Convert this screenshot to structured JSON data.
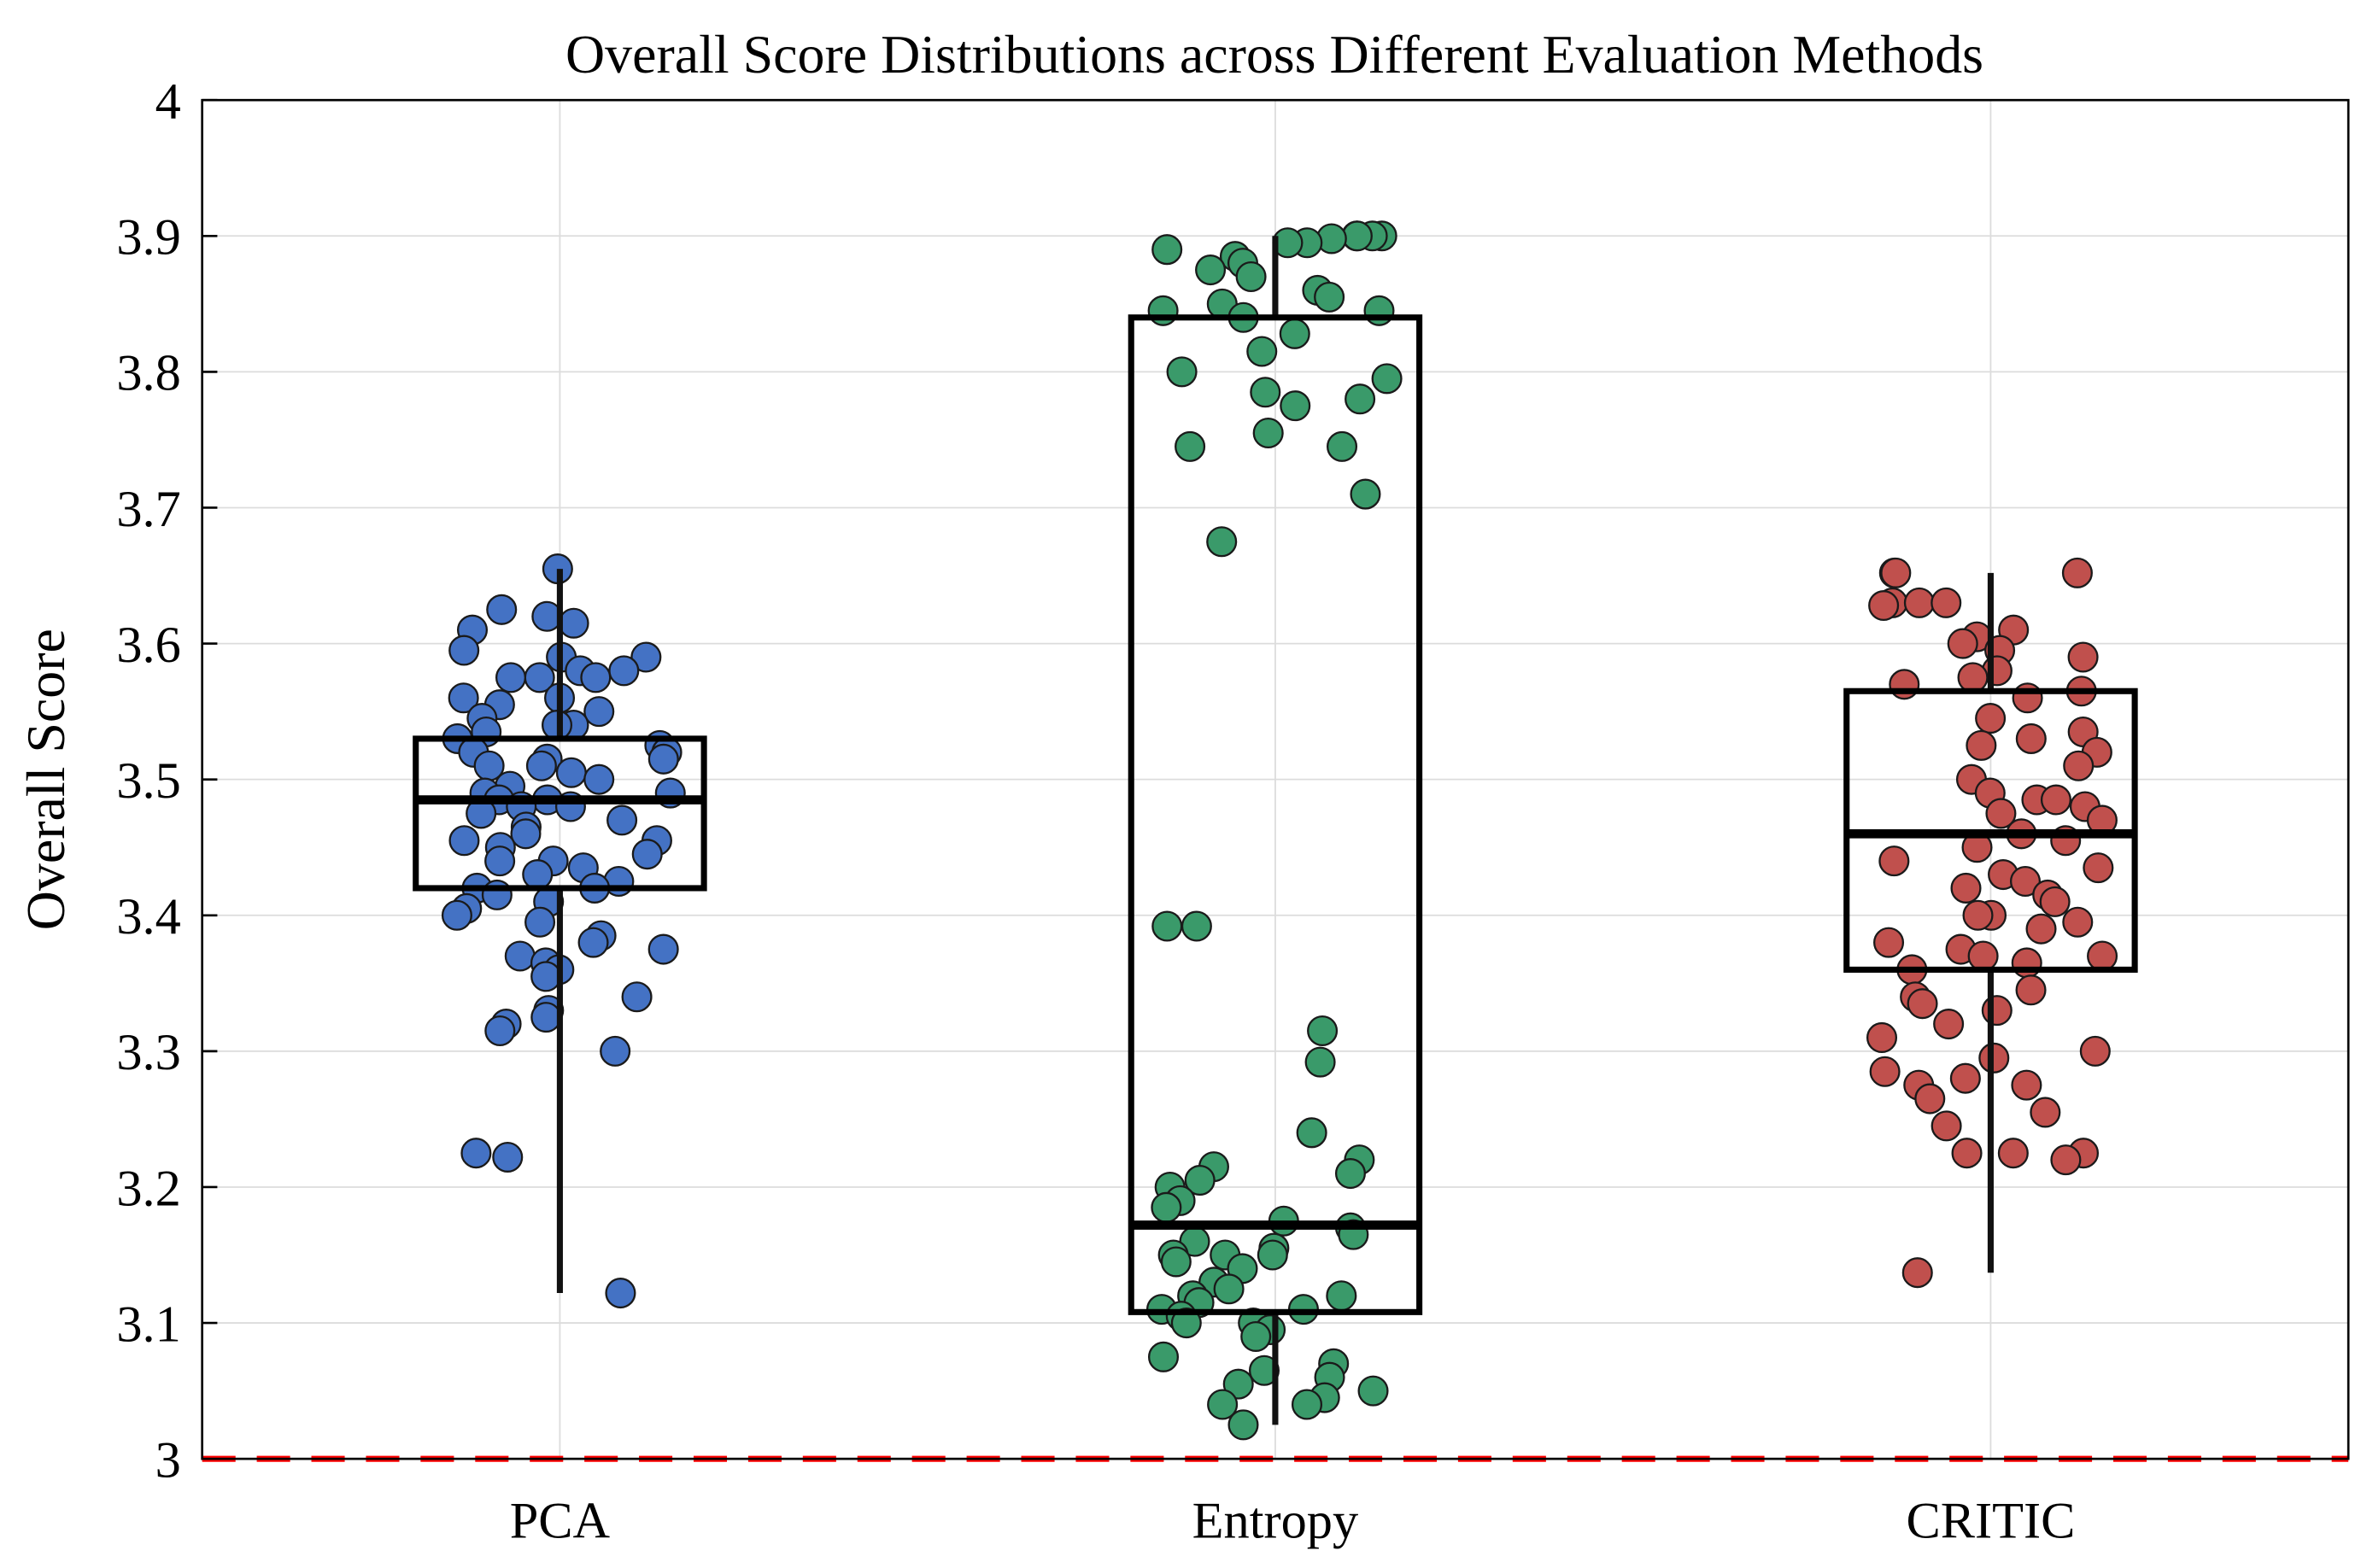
{
  "chart_data": {
    "type": "boxplot-with-jittered-scatter",
    "title": "Overall Score Distributions across Different Evaluation Methods",
    "xlabel": "",
    "ylabel": "Overall Score",
    "ylim": [
      3,
      4
    ],
    "yticks": [
      "3",
      "3.1",
      "3.2",
      "3.3",
      "3.4",
      "3.5",
      "3.6",
      "3.7",
      "3.8",
      "3.9",
      "4"
    ],
    "grid": true,
    "reference_line": {
      "value": 3,
      "color": "#ff0000",
      "style": "dashed"
    },
    "categories": [
      "PCA",
      "Entropy",
      "CRITIC"
    ],
    "series": [
      {
        "name": "PCA",
        "color": "#4472c4",
        "box": {
          "whisker_low": 3.122,
          "q1": 3.42,
          "median": 3.485,
          "q3": 3.53,
          "whisker_high": 3.655
        },
        "points": [
          3.655,
          3.615,
          3.61,
          3.625,
          3.62,
          3.59,
          3.595,
          3.59,
          3.58,
          3.575,
          3.575,
          3.58,
          3.575,
          3.56,
          3.56,
          3.555,
          3.55,
          3.545,
          3.54,
          3.54,
          3.535,
          3.53,
          3.525,
          3.52,
          3.52,
          3.515,
          3.515,
          3.51,
          3.51,
          3.505,
          3.5,
          3.495,
          3.49,
          3.49,
          3.485,
          3.485,
          3.48,
          3.48,
          3.475,
          3.47,
          3.465,
          3.46,
          3.455,
          3.455,
          3.45,
          3.445,
          3.44,
          3.44,
          3.435,
          3.43,
          3.425,
          3.42,
          3.42,
          3.415,
          3.41,
          3.405,
          3.4,
          3.395,
          3.385,
          3.38,
          3.375,
          3.37,
          3.365,
          3.36,
          3.355,
          3.34,
          3.33,
          3.325,
          3.32,
          3.315,
          3.3,
          3.225,
          3.222,
          3.122
        ]
      },
      {
        "name": "Entropy",
        "color": "#3a9a6a",
        "box": {
          "whisker_low": 3.025,
          "q1": 3.108,
          "median": 3.172,
          "q3": 3.84,
          "whisker_high": 3.9
        },
        "points": [
          3.9,
          3.9,
          3.9,
          3.9,
          3.898,
          3.895,
          3.895,
          3.89,
          3.885,
          3.88,
          3.875,
          3.87,
          3.86,
          3.855,
          3.85,
          3.845,
          3.845,
          3.84,
          3.828,
          3.815,
          3.8,
          3.795,
          3.785,
          3.78,
          3.775,
          3.755,
          3.745,
          3.745,
          3.71,
          3.675,
          3.392,
          3.392,
          3.315,
          3.292,
          3.24,
          3.22,
          3.215,
          3.21,
          3.205,
          3.2,
          3.19,
          3.185,
          3.175,
          3.17,
          3.165,
          3.16,
          3.155,
          3.15,
          3.15,
          3.15,
          3.145,
          3.14,
          3.13,
          3.125,
          3.12,
          3.12,
          3.115,
          3.11,
          3.11,
          3.105,
          3.1,
          3.1,
          3.095,
          3.09,
          3.075,
          3.07,
          3.065,
          3.06,
          3.055,
          3.05,
          3.045,
          3.04,
          3.04,
          3.025
        ]
      },
      {
        "name": "CRITIC",
        "color": "#c0504d",
        "box": {
          "whisker_low": 3.137,
          "q1": 3.36,
          "median": 3.46,
          "q3": 3.565,
          "whisker_high": 3.652
        },
        "points": [
          3.652,
          3.652,
          3.652,
          3.63,
          3.63,
          3.63,
          3.628,
          3.61,
          3.605,
          3.6,
          3.595,
          3.59,
          3.58,
          3.575,
          3.57,
          3.565,
          3.56,
          3.545,
          3.535,
          3.53,
          3.525,
          3.52,
          3.51,
          3.5,
          3.49,
          3.485,
          3.485,
          3.48,
          3.475,
          3.47,
          3.46,
          3.455,
          3.45,
          3.44,
          3.435,
          3.43,
          3.425,
          3.42,
          3.415,
          3.41,
          3.4,
          3.4,
          3.395,
          3.39,
          3.38,
          3.375,
          3.37,
          3.37,
          3.365,
          3.36,
          3.345,
          3.34,
          3.335,
          3.33,
          3.32,
          3.31,
          3.3,
          3.295,
          3.285,
          3.28,
          3.275,
          3.275,
          3.265,
          3.255,
          3.245,
          3.225,
          3.225,
          3.225,
          3.22,
          3.137
        ]
      }
    ]
  }
}
